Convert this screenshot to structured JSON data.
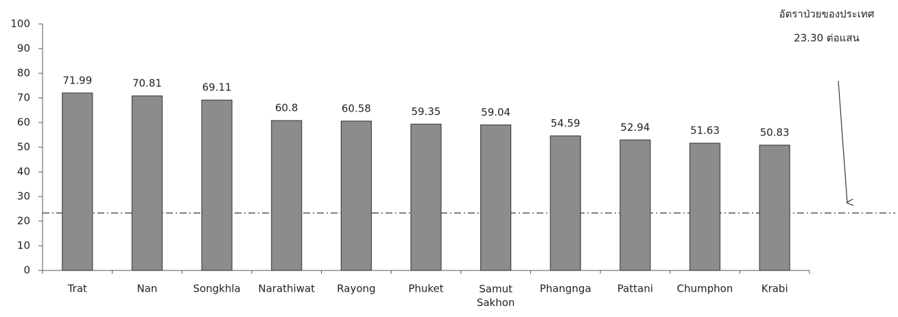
{
  "chart_data": {
    "type": "bar",
    "categories": [
      "Trat",
      "Nan",
      "Songkhla",
      "Narathiwat",
      "Rayong",
      "Phuket",
      "Samut Sakhon",
      "Phangnga",
      "Pattani",
      "Chumphon",
      "Krabi"
    ],
    "values": [
      71.99,
      70.81,
      69.11,
      60.8,
      60.58,
      59.35,
      59.04,
      54.59,
      52.94,
      51.63,
      50.83
    ],
    "color": "#8c8c8c",
    "ylim": [
      0,
      100
    ],
    "yticks": [
      0,
      10,
      20,
      30,
      40,
      50,
      60,
      70,
      80,
      90,
      100
    ],
    "grid": false,
    "reference_line": {
      "value": 23.3,
      "label": "23.30 ต่อแสน"
    },
    "annotation": "อัตราป่วยของประเทศ"
  }
}
